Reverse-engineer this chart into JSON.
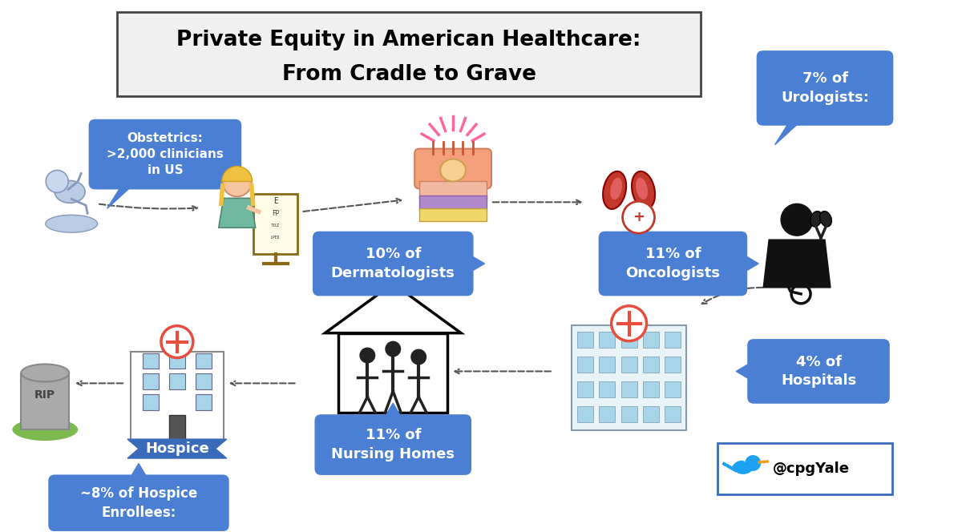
{
  "title_line1": "Private Equity in American Healthcare:",
  "title_line2": "From Cradle to Grave",
  "bg_color": "#ffffff",
  "blue_box_color": "#4a7fd4",
  "blue_box_text_color": "#ffffff",
  "title_bg": "#f0f0f0",
  "title_edge": "#444444",
  "labels": {
    "obstetrics": "Obstetrics:\n>2,000 clinicians\nin US",
    "dermatologists": "10% of\nDermatologists",
    "urologists": "7% of\nUrologists:",
    "oncologists": "11% of\nOncologists",
    "hospitals": "4% of\nHospitals",
    "nursing_homes": "11% of\nNursing Homes",
    "hospice_enrollees": "~8% of Hospice\nEnrollees:",
    "hospice": "Hospice"
  },
  "twitter_handle": "@cpgYale",
  "arrow_color": "#555555",
  "hospice_ribbon_color": "#3a6bba",
  "twitter_border_color": "#3a6bba",
  "twitter_bird_color": "#1da1f2",
  "grave_color": "#aaaaaa",
  "grass_color": "#7cba50",
  "hospital_bg": "#e8f4f8",
  "window_color": "#a8d4ea",
  "cross_color": "#e74c3c",
  "cross_bg": "#e8a0b4",
  "skin_top_color": "#f4a460",
  "skin_blob_color": "#f5c5a0",
  "skin_inner_color": "#f0d080",
  "skin_layer_color": "#b088cc",
  "skin_hair_color": "#cc7755",
  "kidney_color": "#c0392b",
  "kidney_inner": "#e06050",
  "oncologist_color": "#111111",
  "ribbon_cancer_color": "#dddddd"
}
